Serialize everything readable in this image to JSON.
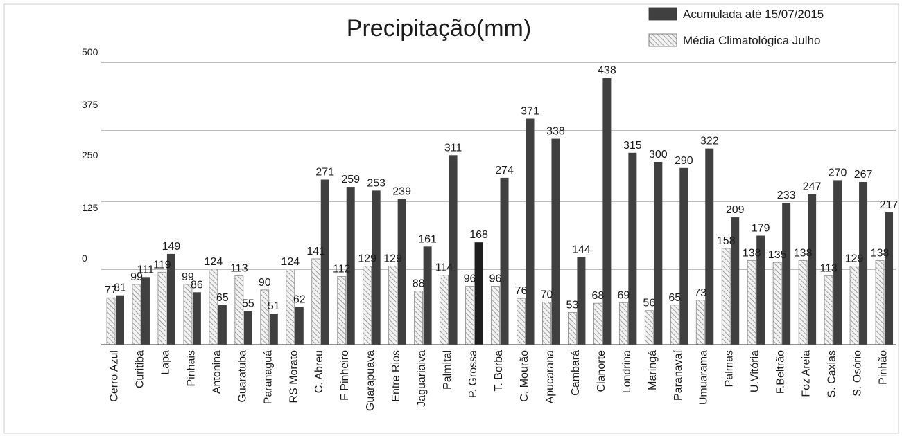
{
  "chart_data": {
    "type": "bar",
    "title": "Precipitação(mm)",
    "y_ticks": [
      "500",
      "375",
      "250",
      "125",
      "0"
    ],
    "grid": true,
    "legend_position": "top-right",
    "categories": [
      "Cerro Azul",
      "Curitiba",
      "Lapa",
      "Pinhais",
      "Antonina",
      "Guaratuba",
      "Paranaguá",
      "RS Morato",
      "C. Abreu",
      "F Pinheiro",
      "Guarapuava",
      "Entre Rios",
      "Jaguariaiva",
      "Palmital",
      "P. Grossa",
      "T. Borba",
      "C. Mourão",
      "Apucarana",
      "Cambará",
      "Cianorte",
      "Londrina",
      "Maringá",
      "Paranavaí",
      "Umuarama",
      "Palmas",
      "U.Vitória",
      "F.Beltrão",
      "Foz Areia",
      "S. Caxias",
      "S. Osório",
      "Pinhão"
    ],
    "series": [
      {
        "name": "Média Climatológica Julho",
        "pattern": "hatched",
        "values": [
          77,
          99,
          119,
          99,
          124,
          113,
          90,
          124,
          141,
          112,
          129,
          129,
          88,
          114,
          96,
          96,
          76,
          70,
          53,
          68,
          69,
          56,
          65,
          73,
          158,
          138,
          135,
          138,
          113,
          129,
          138
        ]
      },
      {
        "name": "Acumulada até 15/07/2015",
        "color": "#404040",
        "values": [
          81,
          111,
          149,
          86,
          65,
          55,
          51,
          62,
          271,
          259,
          253,
          239,
          161,
          311,
          168,
          274,
          371,
          338,
          144,
          438,
          315,
          300,
          290,
          322,
          209,
          179,
          233,
          247,
          270,
          267,
          217
        ]
      }
    ],
    "highlight_color": "#1e1e1e",
    "highlight_category": "P. Grossa"
  }
}
